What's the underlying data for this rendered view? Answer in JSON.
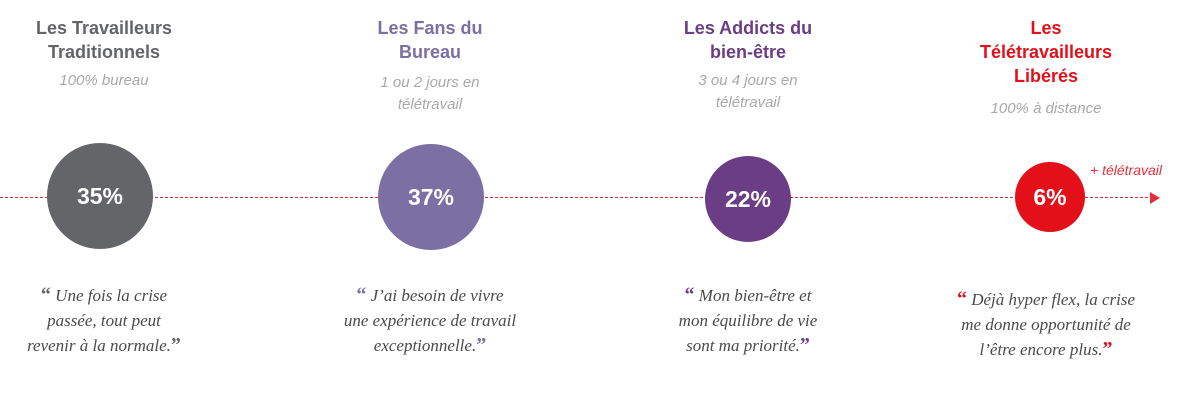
{
  "axis_label": "+ télétravail",
  "colors": {
    "gray": "#646569",
    "lavender": "#7b6fa3",
    "purple": "#6a3d84",
    "red": "#e3101a",
    "subtitle": "#a8a8a8",
    "quote": "#4a4a4a"
  },
  "segments": [
    {
      "title_lines": [
        "Les Travailleurs",
        "Traditionnels"
      ],
      "subtitle_lines": [
        "100% bureau"
      ],
      "percentage": "35%",
      "quote_lines": [
        "Une fois la crise",
        "passée, tout peut",
        "revenir à la normale."
      ]
    },
    {
      "title_lines": [
        "Les Fans du",
        "Bureau"
      ],
      "subtitle_lines": [
        "1 ou 2 jours en",
        "télétravail"
      ],
      "percentage": "37%",
      "quote_lines": [
        "J’ai besoin de vivre",
        "une expérience de travail",
        "exceptionnelle."
      ]
    },
    {
      "title_lines": [
        "Les Addicts du",
        "bien-être"
      ],
      "subtitle_lines": [
        "3 ou 4 jours en",
        "télétravail"
      ],
      "percentage": "22%",
      "quote_lines": [
        "Mon bien-être et",
        "mon équilibre de vie",
        "sont ma priorité."
      ]
    },
    {
      "title_lines": [
        "Les",
        "Télétravailleurs",
        "Libérés"
      ],
      "subtitle_lines": [
        "100% à distance"
      ],
      "percentage": "6%",
      "quote_lines": [
        "Déjà hyper flex, la crise",
        "me donne opportunité de",
        "l’être encore plus."
      ]
    }
  ]
}
